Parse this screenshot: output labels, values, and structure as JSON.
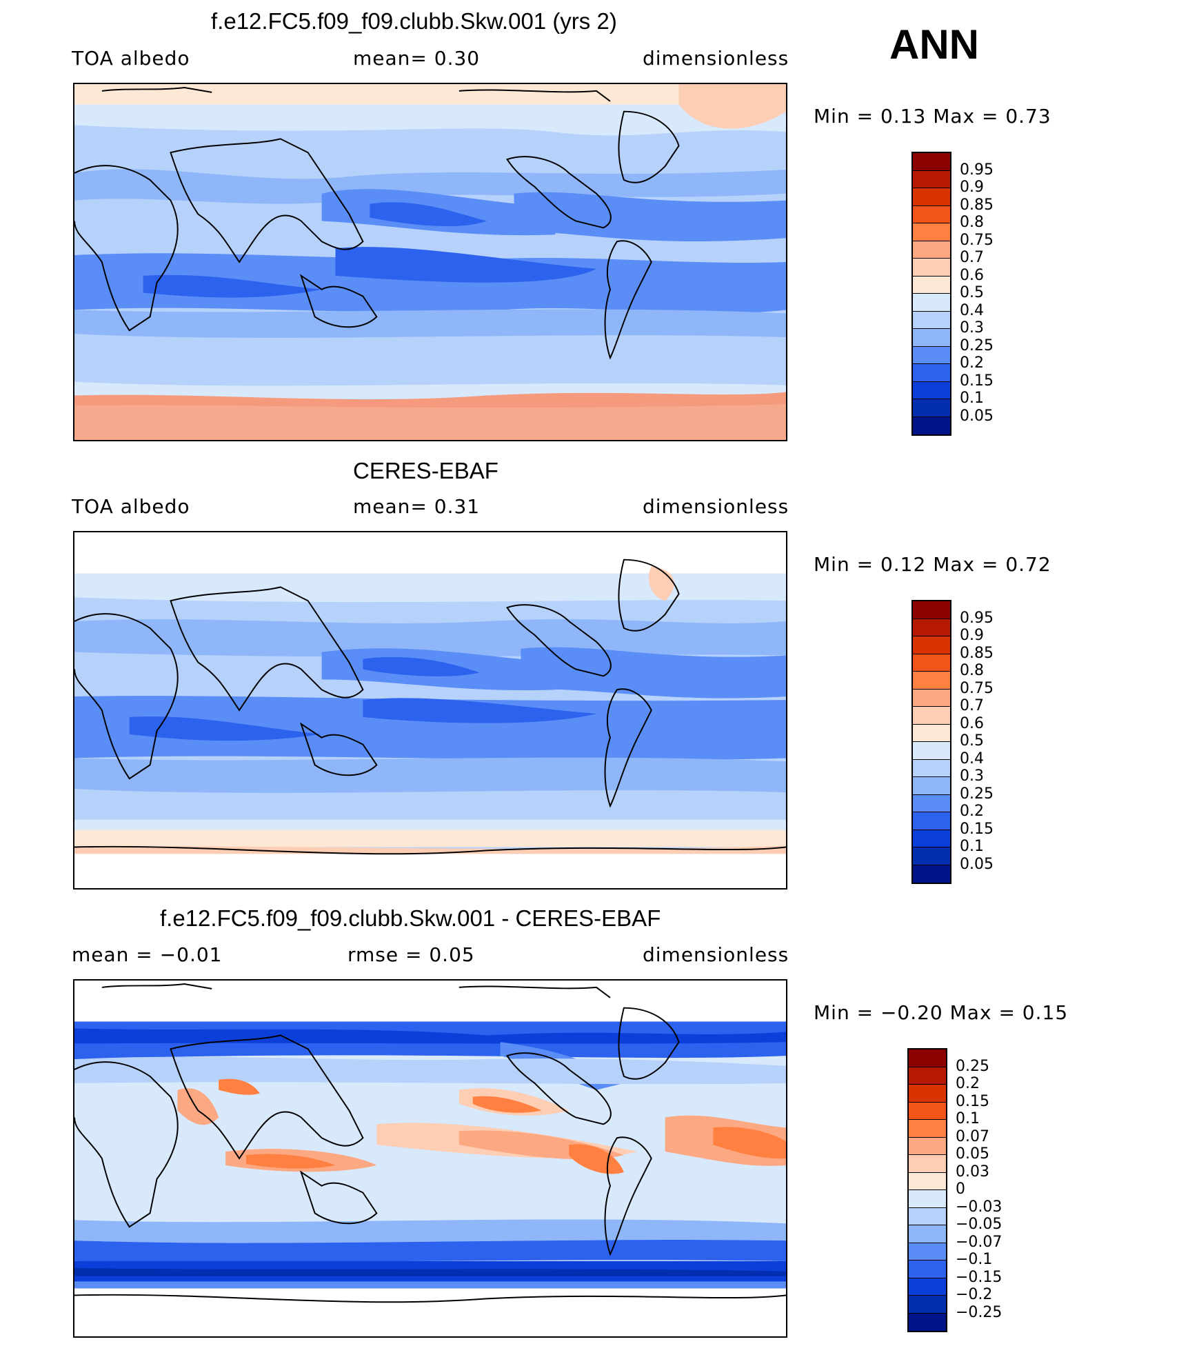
{
  "season": "ANN",
  "panels": [
    {
      "id": "model",
      "title": "f.e12.FC5.f09_f09.clubb.Skw.001 (yrs 2)",
      "left_label": "TOA  albedo",
      "mid_label": "mean=     0.30",
      "right_label": "dimensionless",
      "minmax_label": "Min  =      0.13  Max  =      0.73",
      "colorbar": {
        "labels": [
          "0.95",
          "0.9",
          "0.85",
          "0.8",
          "0.75",
          "0.7",
          "0.6",
          "0.5",
          "0.4",
          "0.3",
          "0.25",
          "0.2",
          "0.15",
          "0.1",
          "0.05"
        ],
        "colors": [
          "#8b0000",
          "#b51a00",
          "#d93400",
          "#f25419",
          "#ff8040",
          "#fca883",
          "#fdcdb4",
          "#fde8d6",
          "#d8e9fb",
          "#b6d2fb",
          "#8eb6f9",
          "#5a8df5",
          "#2c62ee",
          "#0c3fd9",
          "#032eb0",
          "#00148a"
        ]
      }
    },
    {
      "id": "obs",
      "title": "CERES-EBAF",
      "left_label": "TOA  albedo",
      "mid_label": "mean=     0.31",
      "right_label": "dimensionless",
      "minmax_label": "Min  =      0.12  Max  =      0.72",
      "colorbar": {
        "labels": [
          "0.95",
          "0.9",
          "0.85",
          "0.8",
          "0.75",
          "0.7",
          "0.6",
          "0.5",
          "0.4",
          "0.3",
          "0.25",
          "0.2",
          "0.15",
          "0.1",
          "0.05"
        ],
        "colors": [
          "#8b0000",
          "#b51a00",
          "#d93400",
          "#f25419",
          "#ff8040",
          "#fca883",
          "#fdcdb4",
          "#fde8d6",
          "#d8e9fb",
          "#b6d2fb",
          "#8eb6f9",
          "#5a8df5",
          "#2c62ee",
          "#0c3fd9",
          "#032eb0",
          "#00148a"
        ]
      }
    },
    {
      "id": "diff",
      "title": "f.e12.FC5.f09_f09.clubb.Skw.001 - CERES-EBAF",
      "left_label": "mean  =    −0.01",
      "mid_label": "rmse  =      0.05",
      "right_label": "dimensionless",
      "minmax_label": "Min  =    −0.20  Max  =      0.15",
      "colorbar": {
        "labels": [
          "0.25",
          "0.2",
          "0.15",
          "0.1",
          "0.07",
          "0.05",
          "0.03",
          "0",
          "−0.03",
          "−0.05",
          "−0.07",
          "−0.1",
          "−0.15",
          "−0.2",
          "−0.25"
        ],
        "colors": [
          "#8b0000",
          "#b51a00",
          "#d93400",
          "#f25419",
          "#ff8040",
          "#fca883",
          "#fdcdb4",
          "#fde8d6",
          "#d8e9fb",
          "#b6d2fb",
          "#8eb6f9",
          "#5a8df5",
          "#2c62ee",
          "#0c3fd9",
          "#032eb0",
          "#00148a"
        ]
      }
    }
  ],
  "colors": {
    "land_outline": "#000000",
    "ice_cap_model": "#f59a7c",
    "ice_cap_obs": "#fbd2bc",
    "pale_blue": "#d8e9fb",
    "light_blue": "#b6d2fb",
    "mid_blue": "#8eb6f9",
    "blue": "#5a8df5",
    "dark_blue": "#2c62ee",
    "peach": "#fdcdb4",
    "orange": "#ff8040"
  }
}
